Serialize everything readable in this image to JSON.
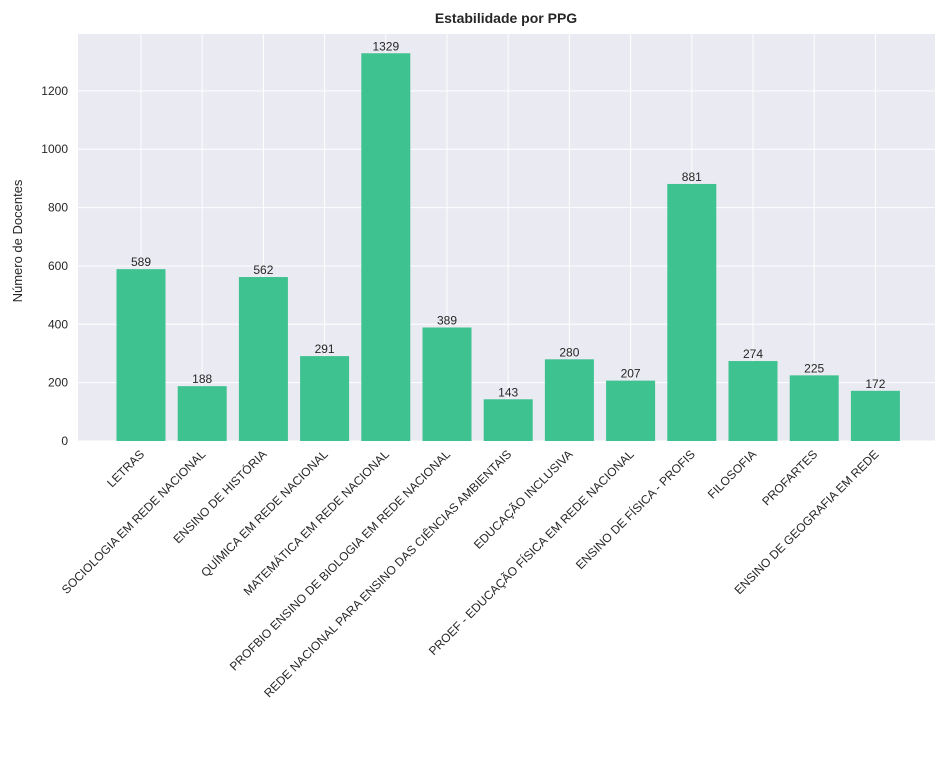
{
  "chart_data": {
    "type": "bar",
    "title": "Estabilidade por PPG",
    "xlabel": "",
    "ylabel": "Número de Docentes",
    "ylim": [
      0,
      1395
    ],
    "yticks": [
      0,
      200,
      400,
      600,
      800,
      1000,
      1200
    ],
    "grid": true,
    "bar_color": "#3ec28f",
    "background_color": "#eaeaf2",
    "categories": [
      "LETRAS",
      "SOCIOLOGIA EM REDE NACIONAL",
      "ENSINO DE HISTÓRIA",
      "QUÍMICA EM REDE NACIONAL",
      "MATEMÁTICA EM REDE NACIONAL",
      "PROFBIO ENSINO DE BIOLOGIA EM REDE NACIONAL",
      "REDE NACIONAL PARA ENSINO DAS CIÊNCIAS AMBIENTAIS",
      "EDUCAÇÃO INCLUSIVA",
      "PROEF - EDUCAÇÃO FÍSICA EM REDE NACIONAL",
      "ENSINO DE FÍSICA - PROFIS",
      "FILOSOFIA",
      "PROFARTES",
      "ENSINO DE GEOGRAFIA EM REDE"
    ],
    "values": [
      589,
      188,
      562,
      291,
      1329,
      389,
      143,
      280,
      207,
      881,
      274,
      225,
      172
    ]
  }
}
